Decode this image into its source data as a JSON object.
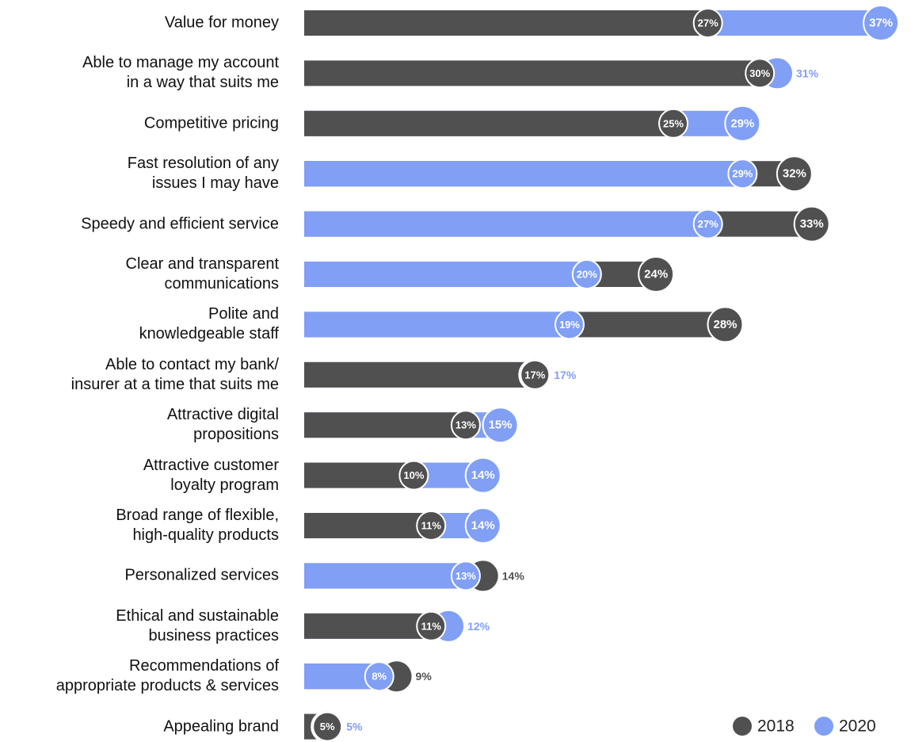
{
  "chart_data": {
    "type": "bar",
    "categories": [
      "Value for money",
      "Able to manage my account\nin a way that suits me",
      "Competitive pricing",
      "Fast resolution of any\nissues I may have",
      "Speedy and efficient service",
      "Clear and transparent\ncommunications",
      "Polite and\nknowledgeable staff",
      "Able to contact my bank/\ninsurer at a time that suits me",
      "Attractive digital\npropositions",
      "Attractive customer\nloyalty program",
      "Broad range of flexible,\nhigh-quality products",
      "Personalized services",
      "Ethical and sustainable\nbusiness practices",
      "Recommendations of\nappropriate products & services",
      "Appealing brand"
    ],
    "series": [
      {
        "name": "2018",
        "color": "#505050",
        "values": [
          27,
          30,
          25,
          32,
          33,
          24,
          28,
          17,
          13,
          10,
          11,
          14,
          11,
          9,
          5
        ],
        "value_labels": [
          "27%",
          "30%",
          "25%",
          "32%",
          "33%",
          "24%",
          "28%",
          "17%",
          "13%",
          "10%",
          "11%",
          "14%",
          "11%",
          "9%",
          "5%"
        ]
      },
      {
        "name": "2020",
        "color": "#809ff5",
        "values": [
          37,
          31,
          29,
          29,
          27,
          20,
          19,
          17,
          15,
          14,
          14,
          13,
          12,
          8,
          5
        ],
        "value_labels": [
          "37%",
          "31%",
          "29%",
          "29%",
          "27%",
          "20%",
          "19%",
          "17%",
          "15%",
          "14%",
          "14%",
          "13%",
          "12%",
          "8%",
          "5%"
        ]
      }
    ],
    "legend": "bottom-right"
  }
}
